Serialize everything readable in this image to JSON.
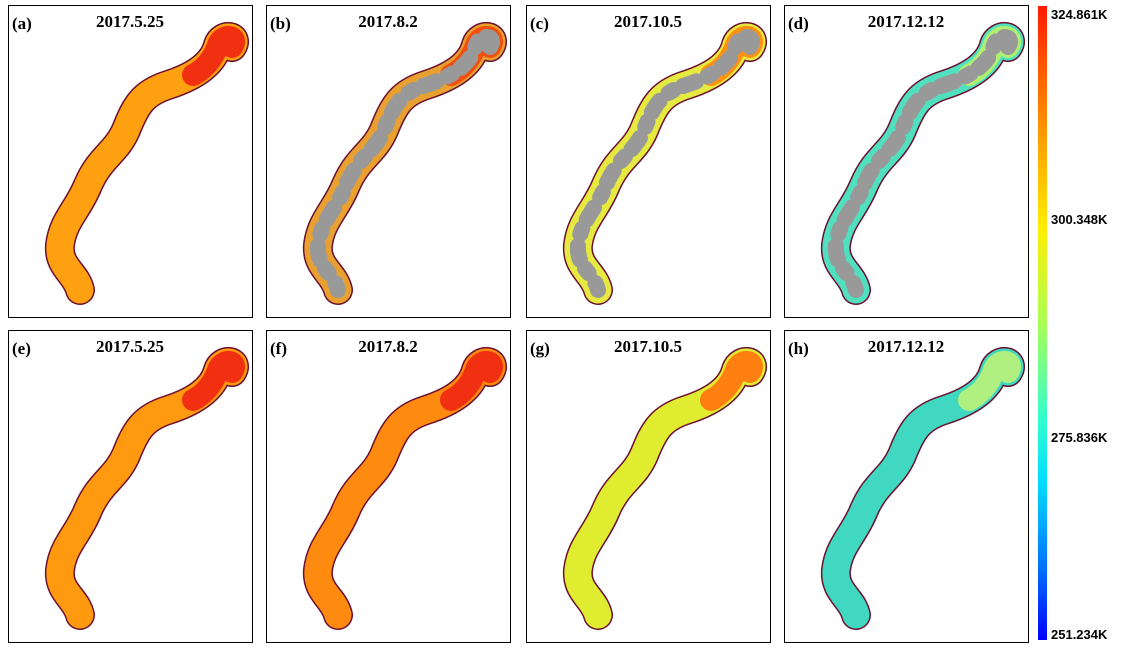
{
  "panels": [
    {
      "label": "(a)",
      "date": "2017.5.25"
    },
    {
      "label": "(b)",
      "date": "2017.8.2"
    },
    {
      "label": "(c)",
      "date": "2017.10.5"
    },
    {
      "label": "(d)",
      "date": "2017.12.12"
    },
    {
      "label": "(e)",
      "date": "2017.5.25"
    },
    {
      "label": "(f)",
      "date": "2017.8.2"
    },
    {
      "label": "(g)",
      "date": "2017.10.5"
    },
    {
      "label": "(h)",
      "date": "2017.12.12"
    }
  ],
  "colorbar": {
    "ticks": [
      "324.861K",
      "300.348K",
      "275.836K",
      "251.234K"
    ]
  }
}
